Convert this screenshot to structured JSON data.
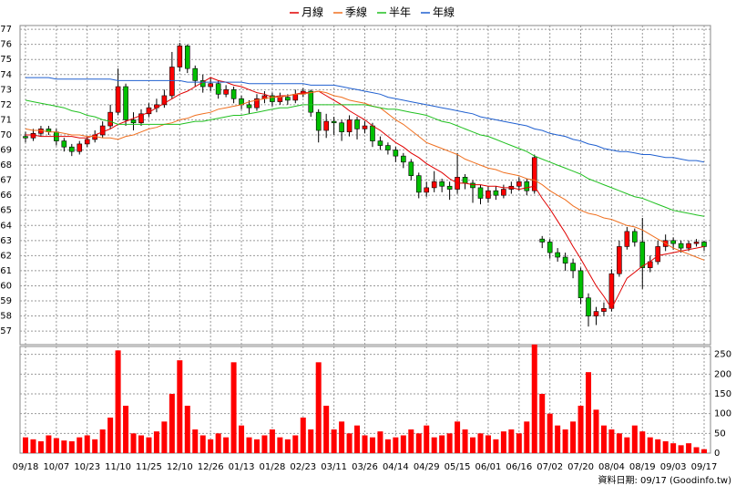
{
  "chart_data": [
    {
      "type": "candlestick",
      "up_color": "#ff0000",
      "down_color": "#00c000",
      "open": [
        69.9,
        69.8,
        70.1,
        70.4,
        70.2,
        69.6,
        69.2,
        68.9,
        69.4,
        69.7,
        70.0,
        70.6,
        71.5,
        73.2,
        71.0,
        70.8,
        71.4,
        71.8,
        72.0,
        72.6,
        74.5,
        75.9,
        74.4,
        73.6,
        73.2,
        73.4,
        72.7,
        73.0,
        72.4,
        72.0,
        71.8,
        72.4,
        72.6,
        72.2,
        72.5,
        72.3,
        72.7,
        72.9,
        71.5,
        70.3,
        70.9,
        70.8,
        70.2,
        71.0,
        70.4,
        70.6,
        69.6,
        69.3,
        69.0,
        68.6,
        68.2,
        67.3,
        66.2,
        66.5,
        66.9,
        66.6,
        66.4,
        67.2,
        66.8,
        66.5,
        65.8,
        66.3,
        66.0,
        66.4,
        66.6,
        66.9,
        66.3,
        63.1,
        62.9,
        62.2,
        61.9,
        61.5,
        61.0,
        59.2,
        58.0,
        58.3,
        58.5,
        60.8,
        62.6,
        63.6,
        62.9,
        61.2,
        61.6,
        62.6,
        63.0,
        62.8,
        62.5,
        62.8,
        62.9
      ],
      "high": [
        70.2,
        70.4,
        70.6,
        70.6,
        70.4,
        69.8,
        69.4,
        69.6,
        69.9,
        70.3,
        70.9,
        72.0,
        74.4,
        73.4,
        71.5,
        71.7,
        72.1,
        72.4,
        73.0,
        75.5,
        76.1,
        76.0,
        74.6,
        74.0,
        73.8,
        73.6,
        73.3,
        73.2,
        72.6,
        72.3,
        72.7,
        72.9,
        72.8,
        72.8,
        72.7,
        73.0,
        73.1,
        73.0,
        71.7,
        71.4,
        71.2,
        71.0,
        71.3,
        71.2,
        70.9,
        70.8,
        69.9,
        69.5,
        69.2,
        68.8,
        68.4,
        67.5,
        66.9,
        67.6,
        67.1,
        66.9,
        68.8,
        67.4,
        67.0,
        66.7,
        66.6,
        66.6,
        66.7,
        66.9,
        67.2,
        67.1,
        68.7,
        63.3,
        63.1,
        62.5,
        62.2,
        61.8,
        61.2,
        59.5,
        58.6,
        58.9,
        61.1,
        63.0,
        63.9,
        63.8,
        64.5,
        62.0,
        63.0,
        63.4,
        63.2,
        63.0,
        63.0,
        63.1,
        63.0
      ],
      "low": [
        69.5,
        69.6,
        69.9,
        70.0,
        69.3,
        68.9,
        68.6,
        68.7,
        69.2,
        69.5,
        69.8,
        70.4,
        71.3,
        70.6,
        70.3,
        70.6,
        71.2,
        71.5,
        71.8,
        72.4,
        74.2,
        74.1,
        73.2,
        72.8,
        72.9,
        72.4,
        72.5,
        72.1,
        71.7,
        71.4,
        71.6,
        72.1,
        71.9,
        72.0,
        72.0,
        72.1,
        72.5,
        71.2,
        69.5,
        69.8,
        70.0,
        69.6,
        69.9,
        69.7,
        70.1,
        69.2,
        69.0,
        68.7,
        68.2,
        67.8,
        67.0,
        65.8,
        65.9,
        66.2,
        66.2,
        65.7,
        66.1,
        66.4,
        65.5,
        65.4,
        65.5,
        65.7,
        65.8,
        66.1,
        66.3,
        66.0,
        66.1,
        62.5,
        61.8,
        61.6,
        61.0,
        60.5,
        58.8,
        57.3,
        57.4,
        58.0,
        58.3,
        60.6,
        62.4,
        62.6,
        59.8,
        60.9,
        61.4,
        62.3,
        62.4,
        62.2,
        62.3,
        62.6,
        62.3
      ],
      "close": [
        69.8,
        70.1,
        70.4,
        70.2,
        69.6,
        69.2,
        68.9,
        69.4,
        69.7,
        70.0,
        70.6,
        71.5,
        73.2,
        71.0,
        70.8,
        71.4,
        71.8,
        72.0,
        72.6,
        74.5,
        75.9,
        74.4,
        73.6,
        73.2,
        73.4,
        72.7,
        73.0,
        72.4,
        72.0,
        71.8,
        72.4,
        72.6,
        72.2,
        72.5,
        72.3,
        72.7,
        72.9,
        71.5,
        70.3,
        70.9,
        70.8,
        70.2,
        71.0,
        70.4,
        70.6,
        69.6,
        69.3,
        69.0,
        68.6,
        68.2,
        67.3,
        66.2,
        66.5,
        66.9,
        66.6,
        66.4,
        67.2,
        66.8,
        66.5,
        65.8,
        66.3,
        66.0,
        66.4,
        66.6,
        66.9,
        66.3,
        68.5,
        62.9,
        62.2,
        61.9,
        61.5,
        61.0,
        59.2,
        58.0,
        58.3,
        58.5,
        60.8,
        62.6,
        63.6,
        62.9,
        61.2,
        61.6,
        62.6,
        63.0,
        62.8,
        62.5,
        62.8,
        62.9,
        62.6
      ],
      "series": [
        {
          "name": "月線",
          "color": "#e00000",
          "values": [
            70.0,
            70.0,
            69.9,
            69.9,
            69.9,
            69.9,
            69.9,
            69.8,
            69.8,
            70.0,
            70.2,
            70.4,
            70.7,
            70.9,
            71.1,
            71.3,
            71.5,
            71.8,
            72.1,
            72.4,
            72.7,
            72.9,
            73.2,
            73.5,
            73.8,
            73.6,
            73.5,
            73.3,
            73.2,
            73.0,
            72.8,
            72.7,
            72.5,
            72.6,
            72.6,
            72.7,
            72.8,
            72.8,
            72.9,
            72.6,
            72.3,
            72.0,
            71.6,
            71.3,
            71.0,
            70.6,
            70.3,
            69.9,
            69.5,
            69.2,
            68.8,
            68.5,
            68.1,
            67.8,
            67.5,
            67.1,
            66.8,
            66.8,
            66.7,
            66.7,
            66.6,
            66.6,
            66.5,
            66.5,
            66.4,
            66.5,
            66.6,
            65.8,
            65.1,
            64.3,
            63.5,
            62.6,
            61.8,
            60.9,
            60.0,
            59.3,
            58.5,
            59.5,
            60.5,
            60.9,
            61.3,
            61.6,
            62.0,
            62.1,
            62.2,
            62.3,
            62.4,
            62.5,
            62.6
          ]
        },
        {
          "name": "季線",
          "color": "#f07020",
          "values": [
            70.4,
            70.3,
            70.3,
            70.2,
            70.2,
            70.1,
            70.0,
            70.0,
            69.9,
            69.9,
            69.8,
            69.8,
            69.7,
            69.9,
            70.0,
            70.2,
            70.4,
            70.5,
            70.7,
            70.8,
            71.0,
            71.1,
            71.3,
            71.4,
            71.5,
            71.7,
            71.8,
            71.9,
            72.0,
            72.2,
            72.3,
            72.4,
            72.5,
            72.5,
            72.6,
            72.7,
            72.7,
            72.8,
            72.9,
            72.8,
            72.6,
            72.5,
            72.3,
            72.2,
            72.1,
            71.9,
            71.8,
            71.4,
            71.0,
            70.7,
            70.3,
            69.9,
            69.5,
            69.3,
            69.1,
            68.9,
            68.7,
            68.4,
            68.2,
            68.0,
            67.8,
            67.7,
            67.5,
            67.4,
            67.3,
            67.1,
            67.0,
            66.7,
            66.3,
            66.0,
            65.7,
            65.3,
            65.0,
            64.8,
            64.7,
            64.5,
            64.4,
            64.2,
            64.0,
            63.9,
            63.7,
            63.4,
            63.1,
            62.8,
            62.5,
            62.3,
            62.1,
            61.9,
            61.7
          ]
        },
        {
          "name": "半年",
          "color": "#20c020",
          "values": [
            72.3,
            72.2,
            72.1,
            72.0,
            71.9,
            71.8,
            71.6,
            71.5,
            71.3,
            71.2,
            71.0,
            70.9,
            70.7,
            70.7,
            70.7,
            70.7,
            70.7,
            70.7,
            70.7,
            70.7,
            70.7,
            70.8,
            70.9,
            70.9,
            71.0,
            71.1,
            71.2,
            71.3,
            71.3,
            71.4,
            71.5,
            71.6,
            71.7,
            71.8,
            71.8,
            71.9,
            72.0,
            72.0,
            72.0,
            72.0,
            72.0,
            72.0,
            72.0,
            72.0,
            72.0,
            71.9,
            71.8,
            71.7,
            71.7,
            71.6,
            71.5,
            71.4,
            71.3,
            71.1,
            70.9,
            70.8,
            70.6,
            70.4,
            70.2,
            70.0,
            69.9,
            69.7,
            69.5,
            69.3,
            69.1,
            68.9,
            68.6,
            68.4,
            68.2,
            68.0,
            67.8,
            67.6,
            67.4,
            67.1,
            66.9,
            66.7,
            66.5,
            66.3,
            66.1,
            65.9,
            65.8,
            65.6,
            65.4,
            65.2,
            65.0,
            64.9,
            64.8,
            64.7,
            64.6
          ]
        },
        {
          "name": "年線",
          "color": "#2060d0",
          "values": [
            73.8,
            73.8,
            73.8,
            73.8,
            73.7,
            73.7,
            73.7,
            73.7,
            73.7,
            73.7,
            73.7,
            73.7,
            73.6,
            73.6,
            73.6,
            73.6,
            73.6,
            73.6,
            73.6,
            73.6,
            73.6,
            73.5,
            73.5,
            73.5,
            73.5,
            73.5,
            73.5,
            73.5,
            73.5,
            73.4,
            73.4,
            73.4,
            73.4,
            73.4,
            73.4,
            73.4,
            73.4,
            73.3,
            73.3,
            73.3,
            73.3,
            73.2,
            73.1,
            73.0,
            72.9,
            72.8,
            72.7,
            72.5,
            72.4,
            72.3,
            72.2,
            72.1,
            72.0,
            71.9,
            71.8,
            71.7,
            71.6,
            71.5,
            71.4,
            71.2,
            71.1,
            71.0,
            70.9,
            70.8,
            70.7,
            70.6,
            70.4,
            70.3,
            70.1,
            70.0,
            69.9,
            69.7,
            69.6,
            69.4,
            69.3,
            69.1,
            69.0,
            68.9,
            68.9,
            68.8,
            68.7,
            68.7,
            68.6,
            68.5,
            68.5,
            68.4,
            68.3,
            68.3,
            68.2
          ]
        }
      ],
      "ylim": [
        56.1,
        77.25
      ],
      "yticks": [
        57,
        58,
        59,
        60,
        61,
        62,
        63,
        64,
        65,
        66,
        67,
        68,
        69,
        70,
        71,
        72,
        73,
        74,
        75,
        76,
        77
      ],
      "grid": true
    },
    {
      "type": "bar",
      "color": "#ff0000",
      "categories": [
        "09/18",
        null,
        null,
        null,
        "10/07",
        null,
        null,
        null,
        "10/23",
        null,
        null,
        null,
        "11/10",
        null,
        null,
        null,
        "11/25",
        null,
        null,
        null,
        "12/10",
        null,
        null,
        null,
        "12/26",
        null,
        null,
        null,
        "01/13",
        null,
        null,
        null,
        "01/28",
        null,
        null,
        null,
        "02/23",
        null,
        null,
        null,
        "03/11",
        null,
        null,
        null,
        "03/26",
        null,
        null,
        null,
        "04/14",
        null,
        null,
        null,
        "04/29",
        null,
        null,
        null,
        "05/15",
        null,
        null,
        null,
        "06/01",
        null,
        null,
        null,
        "06/16",
        null,
        null,
        null,
        "07/02",
        null,
        null,
        null,
        "07/20",
        null,
        null,
        null,
        "08/04",
        null,
        null,
        null,
        "08/19",
        null,
        null,
        null,
        "09/03",
        null,
        null,
        null,
        "09/17"
      ],
      "values": [
        40,
        35,
        30,
        45,
        38,
        32,
        30,
        40,
        45,
        35,
        60,
        90,
        260,
        120,
        50,
        45,
        40,
        55,
        80,
        150,
        235,
        120,
        60,
        45,
        35,
        50,
        40,
        230,
        70,
        40,
        35,
        45,
        60,
        40,
        35,
        45,
        90,
        60,
        230,
        120,
        60,
        80,
        50,
        70,
        45,
        40,
        55,
        35,
        40,
        45,
        60,
        50,
        70,
        40,
        45,
        50,
        80,
        60,
        40,
        50,
        45,
        35,
        55,
        60,
        50,
        80,
        275,
        150,
        100,
        70,
        60,
        80,
        120,
        205,
        110,
        70,
        60,
        50,
        40,
        70,
        55,
        40,
        35,
        30,
        25,
        20,
        25,
        15,
        10
      ],
      "ylim": [
        0,
        270
      ],
      "yticks": [
        0,
        50,
        100,
        150,
        200,
        250
      ],
      "grid": true,
      "footer": "資料日期: 09/17  (Goodinfo.tw)"
    }
  ]
}
